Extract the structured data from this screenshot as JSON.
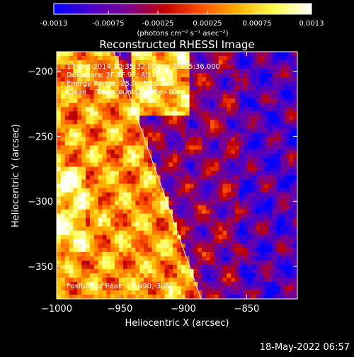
{
  "colorbar": {
    "ticks": [
      "-0.0013",
      "-0.00075",
      "-0.00025",
      "0.00025",
      "0.00075",
      "0.0013"
    ],
    "tick_values": [
      -0.0013,
      -0.00075,
      -0.00025,
      0.00025,
      0.00075,
      0.0013
    ],
    "range": [
      -0.0013,
      0.0013
    ],
    "unit_label": "(photons cm⁻² s⁻¹ asec⁻²)",
    "colormap_stops": [
      "#0000ff",
      "#4b00c8",
      "#7a0090",
      "#c00000",
      "#ff5000",
      "#ffb000",
      "#ffff50",
      "#ffffff"
    ]
  },
  "chart_data": {
    "type": "heatmap",
    "title": "Reconstructed RHESSI Image",
    "xlabel": "Heliocentric X (arcsec)",
    "ylabel": "Heliocentric Y (arcsec)",
    "xlim": [
      -1000,
      -810
    ],
    "ylim": [
      -375,
      -185
    ],
    "x_ticks": [
      -1000,
      -950,
      -900,
      -850
    ],
    "x_tick_labels": [
      "−1000",
      "−950",
      "−900",
      "−850"
    ],
    "y_ticks": [
      -200,
      -250,
      -300,
      -350
    ],
    "y_tick_labels": [
      "−200",
      "−250",
      "−300",
      "−350"
    ],
    "annotations": [
      "17-Oct-2014 20:35:32.000 to 20:35:36.000",
      "Detectors: 3F 6F 9F, Att 0",
      "Energy Range: 25.0 - 50.0 keV",
      "Clean    Total counts: 2.65e+03",
      "Position of Peak = [-990,-305]"
    ],
    "peak": {
      "x": -990,
      "y": -305
    },
    "limb_line": [
      {
        "x": -955,
        "y": -185
      },
      {
        "x": -886,
        "y": -375
      }
    ],
    "grid": false
  },
  "footer": {
    "timestamp": "18-May-2022 06:57"
  }
}
